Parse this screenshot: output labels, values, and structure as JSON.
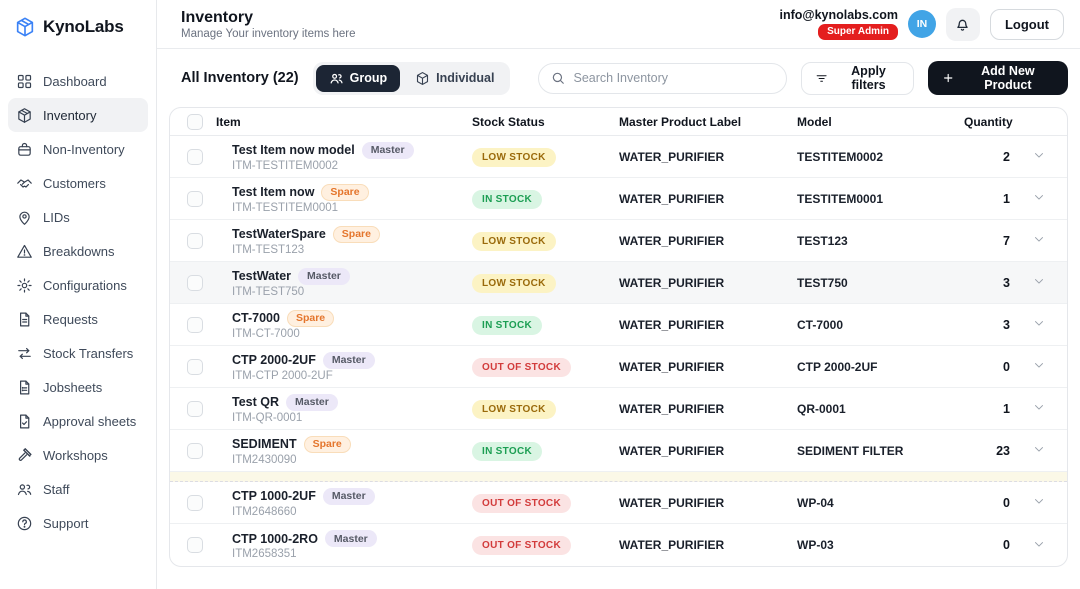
{
  "brand": {
    "name": "KynoLabs",
    "logo_icon": "cube"
  },
  "sidebar": {
    "items": [
      {
        "label": "Dashboard",
        "icon": "dashboard",
        "active": false
      },
      {
        "label": "Inventory",
        "icon": "inventory",
        "active": true
      },
      {
        "label": "Non-Inventory",
        "icon": "non-inventory",
        "active": false
      },
      {
        "label": "Customers",
        "icon": "customers",
        "active": false
      },
      {
        "label": "LIDs",
        "icon": "lids",
        "active": false
      },
      {
        "label": "Breakdowns",
        "icon": "breakdowns",
        "active": false
      },
      {
        "label": "Configurations",
        "icon": "configurations",
        "active": false
      },
      {
        "label": "Requests",
        "icon": "requests",
        "active": false
      },
      {
        "label": "Stock Transfers",
        "icon": "stock-transfers",
        "active": false
      },
      {
        "label": "Jobsheets",
        "icon": "jobsheets",
        "active": false
      },
      {
        "label": "Approval sheets",
        "icon": "approval-sheets",
        "active": false
      },
      {
        "label": "Workshops",
        "icon": "workshops",
        "active": false
      },
      {
        "label": "Staff",
        "icon": "staff",
        "active": false
      },
      {
        "label": "Support",
        "icon": "support",
        "active": false
      }
    ]
  },
  "header": {
    "title": "Inventory",
    "subtitle": "Manage Your inventory items here",
    "email": "info@kynolabs.com",
    "role_badge": "Super Admin",
    "avatar_initials": "IN",
    "logout_label": "Logout"
  },
  "toolbar": {
    "list_title": "All Inventory (22)",
    "view_toggle": {
      "options": [
        "Group",
        "Individual"
      ],
      "active": "Group"
    },
    "search_placeholder": "Search Inventory",
    "apply_filters_label": "Apply filters",
    "add_product_label": "Add New Product"
  },
  "table": {
    "columns": {
      "item": "Item",
      "stock_status": "Stock Status",
      "master_label": "Master Product Label",
      "model": "Model",
      "quantity": "Quantity"
    },
    "rows": [
      {
        "name": "Test Item now model",
        "tag": "Master",
        "code": "ITM-TESTITEM0002",
        "status": "LOW STOCK",
        "master_label": "WATER_PURIFIER",
        "model": "TESTITEM0002",
        "quantity": "2",
        "shaded": false,
        "highlight_after": false
      },
      {
        "name": "Test Item now",
        "tag": "Spare",
        "code": "ITM-TESTITEM0001",
        "status": "IN STOCK",
        "master_label": "WATER_PURIFIER",
        "model": "TESTITEM0001",
        "quantity": "1",
        "shaded": false,
        "highlight_after": false
      },
      {
        "name": "TestWaterSpare",
        "tag": "Spare",
        "code": "ITM-TEST123",
        "status": "LOW STOCK",
        "master_label": "WATER_PURIFIER",
        "model": "TEST123",
        "quantity": "7",
        "shaded": false,
        "highlight_after": false
      },
      {
        "name": "TestWater",
        "tag": "Master",
        "code": "ITM-TEST750",
        "status": "LOW STOCK",
        "master_label": "WATER_PURIFIER",
        "model": "TEST750",
        "quantity": "3",
        "shaded": true,
        "highlight_after": false
      },
      {
        "name": "CT-7000",
        "tag": "Spare",
        "code": "ITM-CT-7000",
        "status": "IN STOCK",
        "master_label": "WATER_PURIFIER",
        "model": "CT-7000",
        "quantity": "3",
        "shaded": false,
        "highlight_after": false
      },
      {
        "name": "CTP 2000-2UF",
        "tag": "Master",
        "code": "ITM-CTP 2000-2UF",
        "status": "OUT OF STOCK",
        "master_label": "WATER_PURIFIER",
        "model": "CTP 2000-2UF",
        "quantity": "0",
        "shaded": false,
        "highlight_after": false
      },
      {
        "name": "Test QR",
        "tag": "Master",
        "code": "ITM-QR-0001",
        "status": "LOW STOCK",
        "master_label": "WATER_PURIFIER",
        "model": "QR-0001",
        "quantity": "1",
        "shaded": false,
        "highlight_after": false
      },
      {
        "name": "SEDIMENT",
        "tag": "Spare",
        "code": "ITM2430090",
        "status": "IN STOCK",
        "master_label": "WATER_PURIFIER",
        "model": "SEDIMENT FILTER",
        "quantity": "23",
        "shaded": false,
        "highlight_after": true
      },
      {
        "name": "CTP 1000-2UF",
        "tag": "Master",
        "code": "ITM2648660",
        "status": "OUT OF STOCK",
        "master_label": "WATER_PURIFIER",
        "model": "WP-04",
        "quantity": "0",
        "shaded": false,
        "highlight_after": false
      },
      {
        "name": "CTP 1000-2RO",
        "tag": "Master",
        "code": "ITM2658351",
        "status": "OUT OF STOCK",
        "master_label": "WATER_PURIFIER",
        "model": "WP-03",
        "quantity": "0",
        "shaded": false,
        "highlight_after": false
      }
    ]
  },
  "colors": {
    "brand_logo": "#3b82f6",
    "avatar_bg": "#41a4e6",
    "role_badge_bg": "#e41e1e",
    "active_nav_bg": "#f1f2f4",
    "toggle_active_bg": "#1c2534",
    "primary_button_bg": "#10151e",
    "status": {
      "LOW STOCK": {
        "bg": "#fcf3c4",
        "text": "#9a6a0b"
      },
      "IN STOCK": {
        "bg": "#d9f5e3",
        "text": "#1c9e53"
      },
      "OUT OF STOCK": {
        "bg": "#fbe3e3",
        "text": "#d23b3b"
      }
    },
    "tag": {
      "Master": {
        "bg": "#ece8f8",
        "text": "#565a66"
      },
      "Spare": {
        "bg": "#fff0e0",
        "text": "#e4752c"
      }
    },
    "highlight_strip_bg": "#fbf8e7"
  }
}
